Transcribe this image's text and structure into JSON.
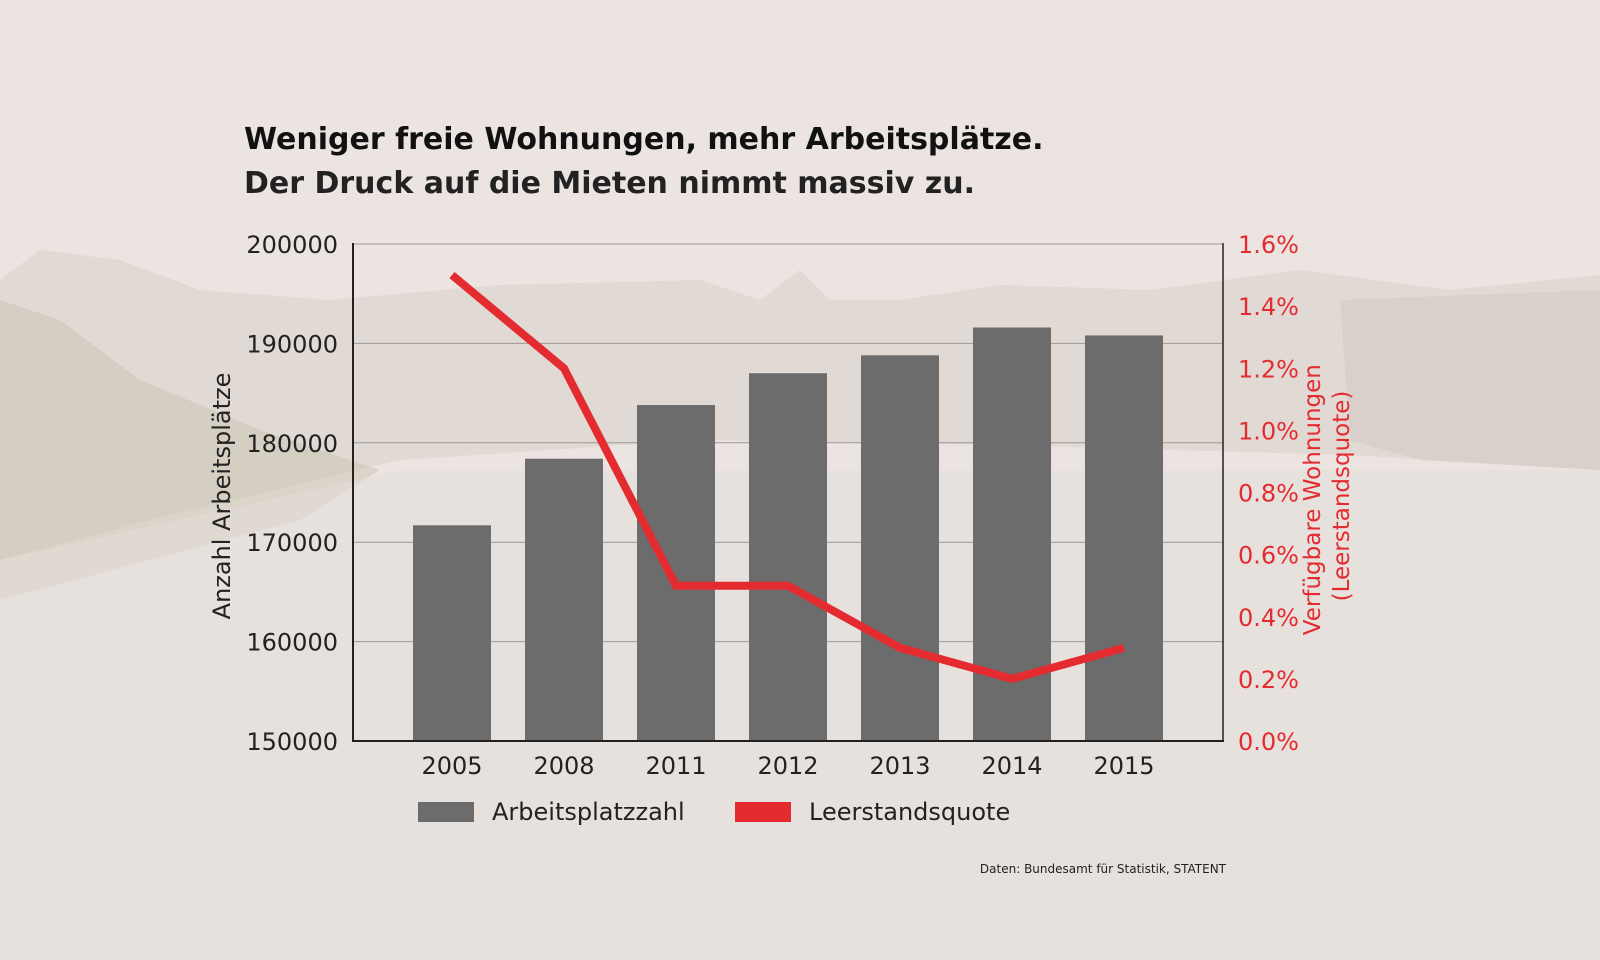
{
  "chart_data": {
    "type": "bar",
    "title": "Weniger freie Wohnungen, mehr Arbeitsplätze.",
    "subtitle": "Der Druck auf die Mieten nimmt massiv zu.",
    "categories": [
      "2005",
      "2008",
      "2011",
      "2012",
      "2013",
      "2014",
      "2015"
    ],
    "series": [
      {
        "name": "Arbeitsplatzzahl",
        "type": "bar",
        "axis": "left",
        "color": "#6d6c6c",
        "values": [
          171700,
          178400,
          183800,
          187000,
          188800,
          191600,
          190800
        ]
      },
      {
        "name": "Leerstandsquote",
        "type": "line",
        "axis": "right",
        "color": "#e42b2f",
        "values": [
          1.5,
          1.2,
          0.5,
          0.5,
          0.3,
          0.2,
          0.3
        ]
      }
    ],
    "ylabel": "Anzahl Arbeitsplätze",
    "ylim": [
      150000,
      200000
    ],
    "yticks": [
      "150000",
      "160000",
      "170000",
      "180000",
      "190000",
      "200000"
    ],
    "y2label_line1": "Verfügbare Wohnungen",
    "y2label_line2": "(Leerstandsquote)",
    "y2lim": [
      0,
      1.6
    ],
    "y2ticks": [
      "0.0%",
      "0.2%",
      "0.4%",
      "0.6%",
      "0.8%",
      "1.0%",
      "1.2%",
      "1.4%",
      "1.6%"
    ],
    "grid": true,
    "legend": "bottom-left",
    "source": "Daten: Bundesamt für Statistik, STATENT"
  },
  "colors": {
    "bar": "#6d6c6c",
    "line": "#e42b2f",
    "axis": "#222222",
    "grid": "#8a8888"
  }
}
